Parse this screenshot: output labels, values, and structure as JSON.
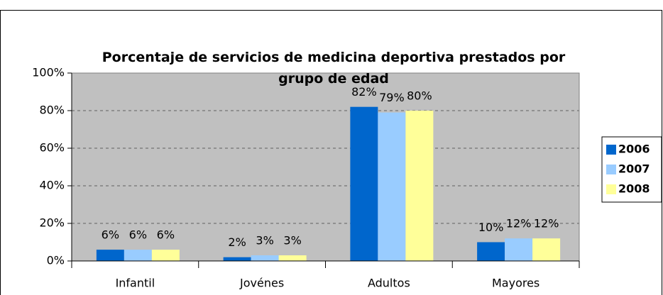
{
  "chart_data": {
    "type": "bar",
    "title": "Porcentaje de servicios de medicina deportiva prestados por grupo de edad",
    "categories": [
      "Infantil",
      "Jovénes",
      "Adultos",
      "Mayores"
    ],
    "series": [
      {
        "name": "2006",
        "color": "#0066cc",
        "values": [
          6,
          2,
          82,
          10
        ],
        "value_labels": [
          "6%",
          "2%",
          "82%",
          "10%"
        ]
      },
      {
        "name": "2007",
        "color": "#99ccff",
        "values": [
          6,
          3,
          79,
          12
        ],
        "value_labels": [
          "6%",
          "3%",
          "79%",
          "12%"
        ]
      },
      {
        "name": "2008",
        "color": "#ffff99",
        "values": [
          6,
          3,
          80,
          12
        ],
        "value_labels": [
          "6%",
          "3%",
          "80%",
          "12%"
        ]
      }
    ],
    "ylim": [
      0,
      100
    ],
    "yticks": [
      {
        "value": 0,
        "label": "0%"
      },
      {
        "value": 20,
        "label": "20%"
      },
      {
        "value": 40,
        "label": "40%"
      },
      {
        "value": 60,
        "label": "60%"
      },
      {
        "value": 80,
        "label": "80%"
      },
      {
        "value": 100,
        "label": "100%"
      }
    ],
    "grid": true,
    "legend": "right",
    "plot_background": "#c0c0c0"
  }
}
